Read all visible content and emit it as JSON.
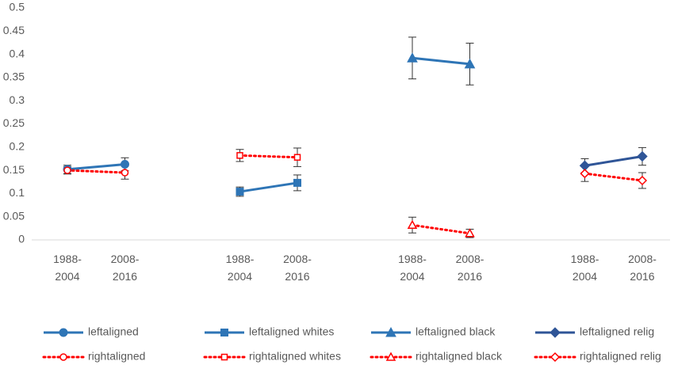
{
  "chart_data": {
    "type": "line",
    "categories": [
      "1988-2004",
      "2008-2016",
      null,
      "1988-2004",
      "2008-2016",
      null,
      "1988-2004",
      "2008-2016",
      null,
      "1988-2004",
      "2008-2016"
    ],
    "ylim": [
      0,
      0.5
    ],
    "yticks": [
      0,
      0.05,
      0.1,
      0.15,
      0.2,
      0.25,
      0.3,
      0.35,
      0.4,
      0.45,
      0.5
    ],
    "grid": false,
    "legend": "bottom",
    "series": [
      {
        "name": "leftaligned",
        "color": "#2e75b6",
        "marker": "circle",
        "style": "solid",
        "values": [
          0.152,
          0.163,
          null,
          null,
          null,
          null,
          null,
          null,
          null,
          null,
          null
        ],
        "errors": [
          0.009,
          0.014,
          null,
          null,
          null,
          null,
          null,
          null,
          null,
          null,
          null
        ]
      },
      {
        "name": "leftaligned whites",
        "color": "#2e75b6",
        "marker": "square",
        "style": "solid",
        "values": [
          null,
          null,
          null,
          0.104,
          0.123,
          null,
          null,
          null,
          null,
          null,
          null
        ],
        "errors": [
          null,
          null,
          null,
          0.01,
          0.017,
          null,
          null,
          null,
          null,
          null,
          null
        ]
      },
      {
        "name": "leftaligned black",
        "color": "#2e75b6",
        "marker": "triangle",
        "style": "solid",
        "values": [
          null,
          null,
          null,
          null,
          null,
          null,
          0.392,
          0.379,
          null,
          null,
          null
        ],
        "errors": [
          null,
          null,
          null,
          null,
          null,
          null,
          0.045,
          0.045,
          null,
          null,
          null
        ]
      },
      {
        "name": "leftaligned relig",
        "color": "#2f5597",
        "marker": "diamond",
        "style": "solid",
        "values": [
          null,
          null,
          null,
          null,
          null,
          null,
          null,
          null,
          null,
          0.16,
          0.18
        ],
        "errors": [
          null,
          null,
          null,
          null,
          null,
          null,
          null,
          null,
          null,
          0.015,
          0.019
        ]
      },
      {
        "name": "rightaligned",
        "color": "#ff0000",
        "marker": "circle",
        "style": "dotted",
        "values": [
          0.15,
          0.145,
          null,
          null,
          null,
          null,
          null,
          null,
          null,
          null,
          null
        ],
        "errors": [
          0.008,
          0.014,
          null,
          null,
          null,
          null,
          null,
          null,
          null,
          null,
          null
        ]
      },
      {
        "name": "rightaligned whites",
        "color": "#ff0000",
        "marker": "square",
        "style": "dotted",
        "values": [
          null,
          null,
          null,
          0.182,
          0.178,
          null,
          null,
          null,
          null,
          null,
          null
        ],
        "errors": [
          null,
          null,
          null,
          0.013,
          0.02,
          null,
          null,
          null,
          null,
          null,
          null
        ]
      },
      {
        "name": "rightaligned black",
        "color": "#ff0000",
        "marker": "triangle",
        "style": "dotted",
        "values": [
          null,
          null,
          null,
          null,
          null,
          null,
          0.032,
          0.014,
          null,
          null,
          null
        ],
        "errors": [
          null,
          null,
          null,
          null,
          null,
          null,
          0.017,
          0.009,
          null,
          null,
          null
        ]
      },
      {
        "name": "rightaligned relig",
        "color": "#ff0000",
        "marker": "diamond",
        "style": "dotted",
        "values": [
          null,
          null,
          null,
          null,
          null,
          null,
          null,
          null,
          null,
          0.143,
          0.128
        ],
        "errors": [
          null,
          null,
          null,
          null,
          null,
          null,
          null,
          null,
          null,
          0.017,
          0.017
        ]
      }
    ]
  }
}
